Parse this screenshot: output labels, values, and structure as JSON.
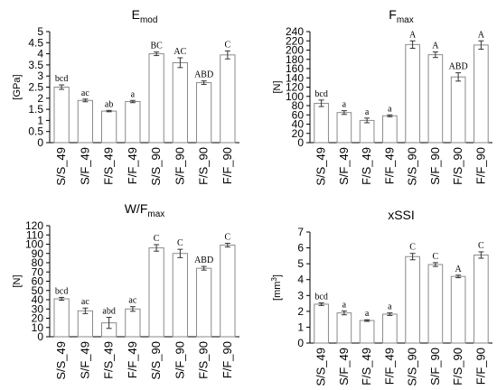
{
  "charts": [
    {
      "type": "bar",
      "title": "E",
      "title_sub": "mod",
      "ylabel": "[GPa]",
      "ylim": [
        0,
        5
      ],
      "yticks": [
        0,
        0.5,
        1,
        1.5,
        2,
        2.5,
        3,
        3.5,
        4,
        4.5,
        5
      ],
      "categories": [
        "S/S_49",
        "S/F_49",
        "F/S_49",
        "F/F_49",
        "S/S_90",
        "S/F_90",
        "F/S_90",
        "F/F_90"
      ],
      "values": [
        2.5,
        1.9,
        1.42,
        1.85,
        4.0,
        3.6,
        2.7,
        3.95
      ],
      "errors": [
        0.1,
        0.06,
        0.03,
        0.05,
        0.08,
        0.22,
        0.08,
        0.18
      ],
      "labels": [
        "bcd",
        "ac",
        "ab",
        "a",
        "BC",
        "AC",
        "ABD",
        "C"
      ]
    },
    {
      "type": "bar",
      "title": "F",
      "title_sub": "max",
      "ylabel": "[N]",
      "ylim": [
        0,
        240
      ],
      "yticks": [
        0,
        20,
        40,
        60,
        80,
        100,
        120,
        140,
        160,
        180,
        200,
        220,
        240
      ],
      "categories": [
        "S/S_49",
        "S/F_49",
        "F/S_49",
        "F/F_49",
        "S/S_90",
        "S/F_90",
        "F/S_90",
        "F/F_90"
      ],
      "values": [
        85,
        65,
        48,
        58,
        212,
        190,
        142,
        211
      ],
      "errors": [
        7,
        4,
        5,
        2,
        8,
        6,
        9,
        9
      ],
      "labels": [
        "bcd",
        "a",
        "a",
        "a",
        "A",
        "A",
        "ABD",
        "A"
      ]
    },
    {
      "type": "bar",
      "title": "W/F",
      "title_sub": "max",
      "ylabel": "[N]",
      "ylim": [
        0,
        120
      ],
      "yticks": [
        0,
        10,
        20,
        30,
        40,
        50,
        60,
        70,
        80,
        90,
        100,
        110,
        120
      ],
      "categories": [
        "S/S_49",
        "S/F_49",
        "F/S_49",
        "F/F_49",
        "S/S_90",
        "S/F_90",
        "F/S_90",
        "F/F_90"
      ],
      "values": [
        41,
        28,
        15,
        30,
        96,
        90,
        74,
        99
      ],
      "errors": [
        1.5,
        3,
        6,
        2.5,
        3.5,
        4.5,
        2,
        2
      ],
      "labels": [
        "bcd",
        "ac",
        "abd",
        "ac",
        "C",
        "C",
        "ABD",
        "C"
      ]
    },
    {
      "type": "bar",
      "title": "xSSI",
      "title_sub": "",
      "ylabel": "[mm",
      "ylabel_sup": "3",
      "ylabel_end": "]",
      "ylim": [
        0,
        7
      ],
      "yticks": [
        0,
        1,
        2,
        3,
        4,
        5,
        6,
        7
      ],
      "categories": [
        "S/S_49",
        "S/F_49",
        "F/S_49",
        "F/F_49",
        "S/S_90",
        "S/F_90",
        "F/S_90",
        "F/F_90"
      ],
      "values": [
        2.45,
        1.9,
        1.42,
        1.82,
        5.45,
        4.95,
        4.2,
        5.55
      ],
      "errors": [
        0.08,
        0.12,
        0.05,
        0.08,
        0.2,
        0.12,
        0.08,
        0.2
      ],
      "labels": [
        "bcd",
        "a",
        "a",
        "a",
        "C",
        "C",
        "A",
        "C"
      ]
    }
  ]
}
